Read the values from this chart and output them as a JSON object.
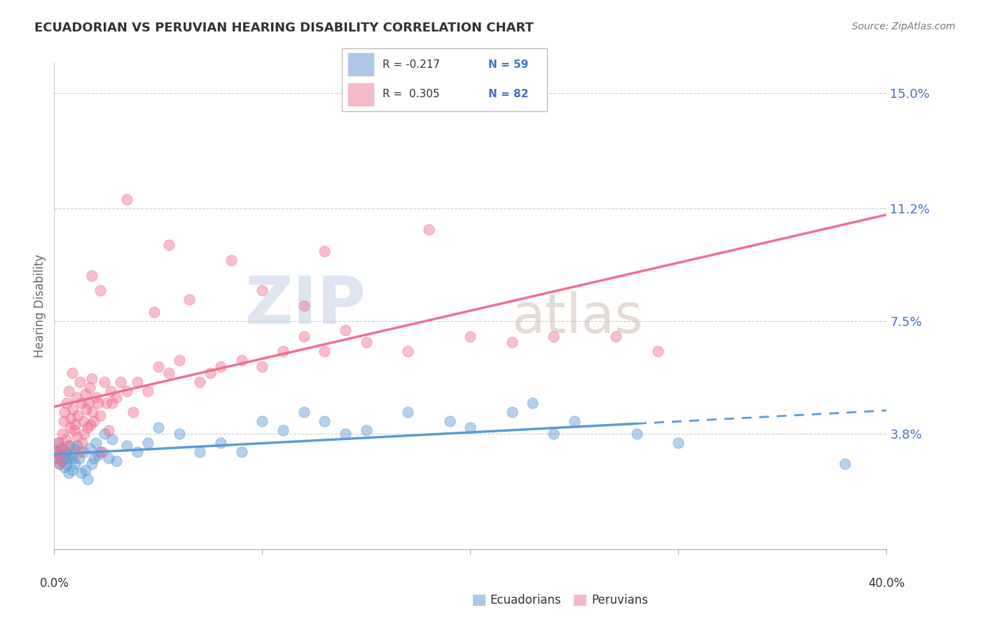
{
  "title": "ECUADORIAN VS PERUVIAN HEARING DISABILITY CORRELATION CHART",
  "source": "Source: ZipAtlas.com",
  "ylabel": "Hearing Disability",
  "xlim": [
    0.0,
    40.0
  ],
  "ylim": [
    0.0,
    16.0
  ],
  "ytick_positions": [
    0.0,
    3.8,
    7.5,
    11.2,
    15.0
  ],
  "ytick_labels": [
    "",
    "3.8%",
    "7.5%",
    "11.2%",
    "15.0%"
  ],
  "blue_color": "#5b9bd5",
  "pink_color": "#f07090",
  "blue_legend_fill": "#aec6e8",
  "pink_legend_fill": "#f4b8c8",
  "legend_text_color": "#333333",
  "legend_highlight_color": "#4472c4",
  "grid_color": "#cccccc",
  "title_color": "#333333",
  "ytick_color": "#4472c4",
  "xlabel_bottom_blue": "Ecuadorians",
  "xlabel_bottom_pink": "Peruvians",
  "ecu_x": [
    0.1,
    0.15,
    0.2,
    0.25,
    0.3,
    0.35,
    0.4,
    0.45,
    0.5,
    0.55,
    0.6,
    0.65,
    0.7,
    0.75,
    0.8,
    0.85,
    0.9,
    0.95,
    1.0,
    1.1,
    1.2,
    1.3,
    1.4,
    1.5,
    1.6,
    1.7,
    1.8,
    1.9,
    2.0,
    2.1,
    2.2,
    2.4,
    2.6,
    2.8,
    3.0,
    3.5,
    4.0,
    4.5,
    5.0,
    6.0,
    7.0,
    8.0,
    9.0,
    10.0,
    11.0,
    12.0,
    13.0,
    14.0,
    15.0,
    17.0,
    19.0,
    20.0,
    22.0,
    23.0,
    24.0,
    25.0,
    28.0,
    30.0,
    38.0
  ],
  "ecu_y": [
    3.2,
    3.0,
    3.5,
    2.8,
    3.1,
    2.9,
    3.3,
    3.0,
    2.7,
    3.2,
    2.8,
    3.0,
    2.5,
    3.4,
    3.1,
    2.6,
    3.0,
    3.3,
    2.8,
    3.4,
    3.0,
    2.5,
    3.2,
    2.6,
    2.3,
    3.3,
    2.8,
    3.0,
    3.5,
    3.1,
    3.2,
    3.8,
    3.0,
    3.6,
    2.9,
    3.4,
    3.2,
    3.5,
    4.0,
    3.8,
    3.2,
    3.5,
    3.2,
    4.2,
    3.9,
    4.5,
    4.2,
    3.8,
    3.9,
    4.5,
    4.2,
    4.0,
    4.5,
    4.8,
    3.8,
    4.2,
    3.8,
    3.5,
    2.8
  ],
  "per_x": [
    0.1,
    0.15,
    0.2,
    0.25,
    0.3,
    0.35,
    0.4,
    0.45,
    0.5,
    0.55,
    0.6,
    0.65,
    0.7,
    0.75,
    0.8,
    0.85,
    0.9,
    0.95,
    1.0,
    1.05,
    1.1,
    1.15,
    1.2,
    1.25,
    1.3,
    1.35,
    1.4,
    1.45,
    1.5,
    1.55,
    1.6,
    1.65,
    1.7,
    1.75,
    1.8,
    1.85,
    1.9,
    2.0,
    2.1,
    2.2,
    2.3,
    2.4,
    2.5,
    2.6,
    2.7,
    2.8,
    3.0,
    3.2,
    3.5,
    3.8,
    4.0,
    4.5,
    5.0,
    5.5,
    6.0,
    7.0,
    7.5,
    8.0,
    9.0,
    10.0,
    11.0,
    12.0,
    13.0,
    14.0,
    15.0,
    17.0,
    20.0,
    22.0,
    24.0,
    27.0,
    29.0,
    5.5,
    3.5,
    8.5,
    12.0,
    2.2,
    1.8,
    4.8,
    6.5,
    13.0,
    18.0,
    10.0
  ],
  "per_y": [
    3.0,
    3.2,
    3.5,
    2.8,
    3.3,
    3.1,
    3.8,
    4.2,
    4.5,
    3.6,
    4.8,
    3.4,
    5.2,
    4.0,
    4.3,
    5.8,
    4.6,
    3.9,
    4.1,
    5.0,
    3.7,
    4.4,
    3.2,
    5.5,
    4.8,
    3.5,
    4.2,
    3.8,
    5.1,
    4.6,
    4.0,
    4.8,
    5.3,
    4.1,
    5.6,
    4.5,
    4.2,
    5.0,
    4.8,
    4.4,
    3.2,
    5.5,
    4.8,
    3.9,
    5.2,
    4.8,
    5.0,
    5.5,
    5.2,
    4.5,
    5.5,
    5.2,
    6.0,
    5.8,
    6.2,
    5.5,
    5.8,
    6.0,
    6.2,
    6.0,
    6.5,
    7.0,
    6.5,
    7.2,
    6.8,
    6.5,
    7.0,
    6.8,
    7.0,
    7.0,
    6.5,
    10.0,
    11.5,
    9.5,
    8.0,
    8.5,
    9.0,
    7.8,
    8.2,
    9.8,
    10.5,
    8.5
  ]
}
